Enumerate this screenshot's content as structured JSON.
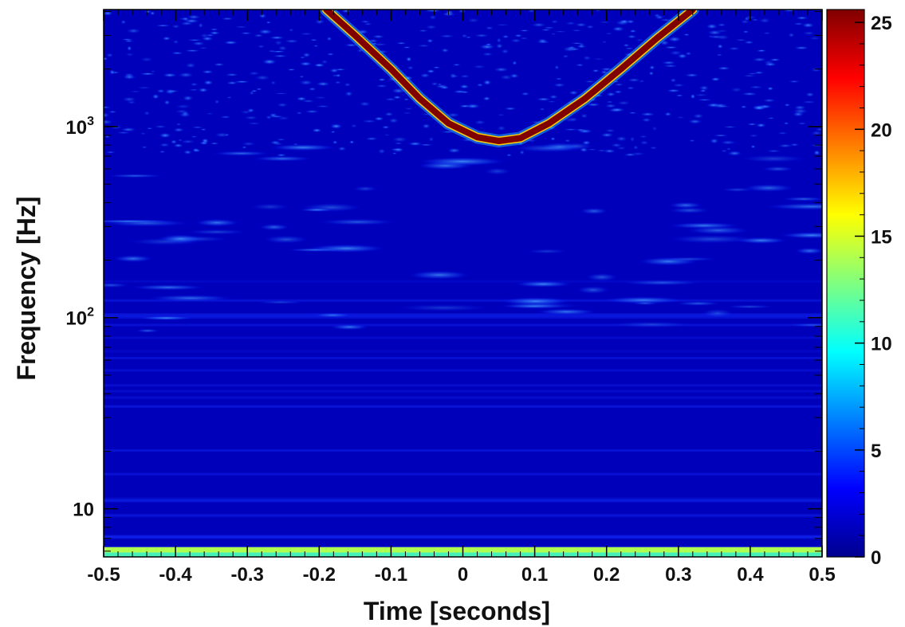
{
  "chart_data": {
    "type": "heatmap",
    "title": "",
    "xlabel": "Time [seconds]",
    "ylabel": "Frequency [Hz]",
    "x_range": [
      -0.5,
      0.5
    ],
    "y_range": [
      5.6,
      4096
    ],
    "y_scale": "log",
    "x_ticks": [
      "-0.5",
      "-0.4",
      "-0.3",
      "-0.2",
      "-0.1",
      "0",
      "0.1",
      "0.2",
      "0.3",
      "0.4",
      "0.5"
    ],
    "y_ticks": [
      {
        "value": 10,
        "label": "10"
      },
      {
        "value": 100,
        "label": "10",
        "sup": "2"
      },
      {
        "value": 1000,
        "label": "10",
        "sup": "3"
      }
    ],
    "colorbar": {
      "range": [
        0,
        25.6
      ],
      "ticks": [
        "0",
        "5",
        "10",
        "15",
        "20",
        "25"
      ],
      "colormap": "jet"
    },
    "chirp_track": {
      "value": 25.6,
      "points": [
        [
          -0.19,
          4096
        ],
        [
          -0.15,
          3000
        ],
        [
          -0.1,
          2000
        ],
        [
          -0.06,
          1400
        ],
        [
          -0.02,
          1040
        ],
        [
          0.02,
          880
        ],
        [
          0.05,
          840
        ],
        [
          0.08,
          870
        ],
        [
          0.12,
          1040
        ],
        [
          0.17,
          1400
        ],
        [
          0.22,
          2000
        ],
        [
          0.27,
          2900
        ],
        [
          0.32,
          4096
        ]
      ]
    },
    "low_frequency_band": {
      "y_range": [
        5.6,
        6.3
      ],
      "value": 14
    },
    "background_level": 1.5
  }
}
